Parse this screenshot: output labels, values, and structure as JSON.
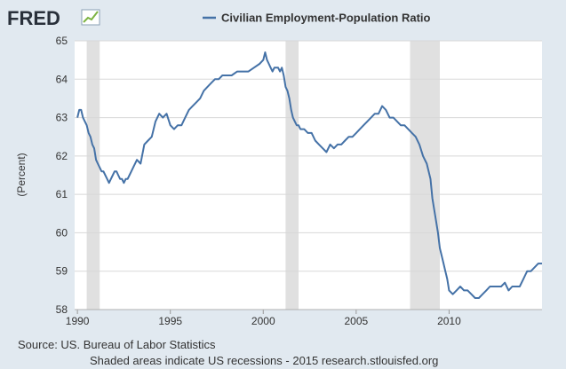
{
  "logo": {
    "text": "FRED"
  },
  "colors": {
    "series": "#4572a7",
    "recession": "#e0e0e0",
    "grid": "#d8d8d8",
    "background": "#e1e9f0",
    "plot": "#ffffff"
  },
  "footer": {
    "source": "Source: US. Bureau of Labor Statistics",
    "note": "Shaded areas indicate US recessions - 2015 research.stlouisfed.org"
  },
  "chart_data": {
    "type": "line",
    "title": "",
    "legend": "Civilian Employment-Population Ratio",
    "legend_position": "top-center",
    "xlabel": "",
    "ylabel": "(Percent)",
    "xlim": [
      1989.85,
      2015.0
    ],
    "ylim": [
      58,
      65
    ],
    "grid": true,
    "x_ticks": [
      1990,
      1995,
      2000,
      2005,
      2010
    ],
    "x_tick_labels": [
      "1990",
      "1995",
      "2000",
      "2005",
      "2010"
    ],
    "y_ticks": [
      58,
      59,
      60,
      61,
      62,
      63,
      64,
      65
    ],
    "y_tick_labels": [
      "58",
      "59",
      "60",
      "61",
      "62",
      "63",
      "64",
      "65"
    ],
    "recessions": [
      [
        1990.5,
        1991.2
      ],
      [
        2001.2,
        2001.9
      ],
      [
        2007.9,
        2009.5
      ]
    ],
    "series": [
      {
        "name": "Civilian Employment-Population Ratio",
        "x": [
          1990.0,
          1990.1,
          1990.2,
          1990.3,
          1990.4,
          1990.5,
          1990.6,
          1990.7,
          1990.8,
          1990.9,
          1991.0,
          1991.1,
          1991.2,
          1991.3,
          1991.4,
          1991.5,
          1991.6,
          1991.7,
          1991.8,
          1991.9,
          1992.0,
          1992.1,
          1992.2,
          1992.3,
          1992.4,
          1992.5,
          1992.6,
          1992.7,
          1992.8,
          1992.9,
          1993.0,
          1993.2,
          1993.4,
          1993.6,
          1993.8,
          1994.0,
          1994.2,
          1994.4,
          1994.6,
          1994.8,
          1995.0,
          1995.2,
          1995.4,
          1995.6,
          1995.8,
          1996.0,
          1996.2,
          1996.4,
          1996.6,
          1996.8,
          1997.0,
          1997.2,
          1997.4,
          1997.6,
          1997.8,
          1998.0,
          1998.3,
          1998.6,
          1998.9,
          1999.2,
          1999.5,
          1999.8,
          2000.0,
          2000.1,
          2000.2,
          2000.3,
          2000.4,
          2000.5,
          2000.6,
          2000.7,
          2000.8,
          2000.9,
          2001.0,
          2001.1,
          2001.2,
          2001.3,
          2001.4,
          2001.5,
          2001.6,
          2001.7,
          2001.8,
          2001.9,
          2002.0,
          2002.2,
          2002.4,
          2002.6,
          2002.8,
          2003.0,
          2003.2,
          2003.4,
          2003.6,
          2003.8,
          2004.0,
          2004.2,
          2004.4,
          2004.6,
          2004.8,
          2005.0,
          2005.2,
          2005.4,
          2005.6,
          2005.8,
          2006.0,
          2006.2,
          2006.4,
          2006.6,
          2006.8,
          2007.0,
          2007.2,
          2007.4,
          2007.6,
          2007.8,
          2008.0,
          2008.2,
          2008.4,
          2008.6,
          2008.8,
          2009.0,
          2009.1,
          2009.2,
          2009.3,
          2009.4,
          2009.5,
          2009.6,
          2009.7,
          2009.8,
          2009.9,
          2010.0,
          2010.2,
          2010.4,
          2010.6,
          2010.8,
          2011.0,
          2011.2,
          2011.4,
          2011.6,
          2011.8,
          2012.0,
          2012.2,
          2012.4,
          2012.6,
          2012.8,
          2013.0,
          2013.2,
          2013.4,
          2013.6,
          2013.8,
          2014.0,
          2014.1,
          2014.2,
          2014.4,
          2014.6,
          2014.8,
          2015.0
        ],
        "y": [
          63.0,
          63.2,
          63.2,
          63.0,
          62.9,
          62.8,
          62.6,
          62.5,
          62.3,
          62.2,
          61.9,
          61.8,
          61.7,
          61.6,
          61.6,
          61.5,
          61.4,
          61.3,
          61.4,
          61.5,
          61.6,
          61.6,
          61.5,
          61.4,
          61.4,
          61.3,
          61.4,
          61.4,
          61.5,
          61.6,
          61.7,
          61.9,
          61.8,
          62.3,
          62.4,
          62.5,
          62.9,
          63.1,
          63.0,
          63.1,
          62.8,
          62.7,
          62.8,
          62.8,
          63.0,
          63.2,
          63.3,
          63.4,
          63.5,
          63.7,
          63.8,
          63.9,
          64.0,
          64.0,
          64.1,
          64.1,
          64.1,
          64.2,
          64.2,
          64.2,
          64.3,
          64.4,
          64.5,
          64.7,
          64.5,
          64.4,
          64.3,
          64.2,
          64.3,
          64.3,
          64.3,
          64.2,
          64.3,
          64.1,
          63.8,
          63.7,
          63.5,
          63.2,
          63.0,
          62.9,
          62.8,
          62.8,
          62.7,
          62.7,
          62.6,
          62.6,
          62.4,
          62.3,
          62.2,
          62.1,
          62.3,
          62.2,
          62.3,
          62.3,
          62.4,
          62.5,
          62.5,
          62.6,
          62.7,
          62.8,
          62.9,
          63.0,
          63.1,
          63.1,
          63.3,
          63.2,
          63.0,
          63.0,
          62.9,
          62.8,
          62.8,
          62.7,
          62.6,
          62.5,
          62.3,
          62.0,
          61.8,
          61.4,
          60.9,
          60.6,
          60.3,
          60.0,
          59.6,
          59.4,
          59.2,
          59.0,
          58.8,
          58.5,
          58.4,
          58.5,
          58.6,
          58.5,
          58.5,
          58.4,
          58.3,
          58.3,
          58.4,
          58.5,
          58.6,
          58.6,
          58.6,
          58.6,
          58.7,
          58.5,
          58.6,
          58.6,
          58.6,
          58.8,
          58.9,
          59.0,
          59.0,
          59.1,
          59.2,
          59.2
        ]
      }
    ]
  }
}
